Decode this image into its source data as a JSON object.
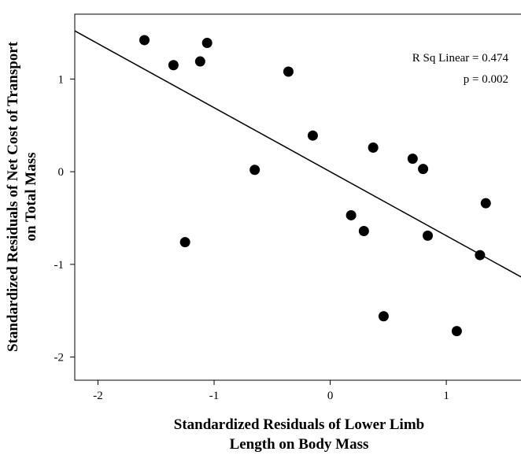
{
  "chart_data": {
    "type": "scatter",
    "xlabel": [
      "Standardized Residuals of Lower Limb",
      "Length on Body Mass"
    ],
    "ylabel": [
      "Standardized Residuals of Net Cost of Transport",
      "on Total Mass"
    ],
    "xlim": [
      -2.2,
      1.65
    ],
    "ylim": [
      -2.25,
      1.7
    ],
    "xticks": [
      -2,
      -1,
      0,
      1
    ],
    "yticks": [
      -2,
      -1,
      0,
      1
    ],
    "grid": false,
    "legend": "none",
    "points": [
      {
        "x": -1.6,
        "y": 1.42
      },
      {
        "x": -1.35,
        "y": 1.15
      },
      {
        "x": -1.12,
        "y": 1.19
      },
      {
        "x": -1.06,
        "y": 1.39
      },
      {
        "x": -1.25,
        "y": -0.76
      },
      {
        "x": -0.65,
        "y": 0.02
      },
      {
        "x": -0.36,
        "y": 1.08
      },
      {
        "x": -0.15,
        "y": 0.39
      },
      {
        "x": 0.18,
        "y": -0.47
      },
      {
        "x": 0.29,
        "y": -0.64
      },
      {
        "x": 0.37,
        "y": 0.26
      },
      {
        "x": 0.46,
        "y": -1.56
      },
      {
        "x": 0.71,
        "y": 0.14
      },
      {
        "x": 0.8,
        "y": 0.03
      },
      {
        "x": 0.84,
        "y": -0.69
      },
      {
        "x": 1.09,
        "y": -1.72
      },
      {
        "x": 1.29,
        "y": -0.9
      },
      {
        "x": 1.34,
        "y": -0.34
      }
    ],
    "fit_line": {
      "x": [
        -2.2,
        1.65
      ],
      "y": [
        1.52,
        -1.14
      ]
    },
    "annotations": [
      "R Sq Linear = 0.474",
      "p = 0.002"
    ],
    "marker_color": "#000000",
    "line_color": "#000000"
  }
}
